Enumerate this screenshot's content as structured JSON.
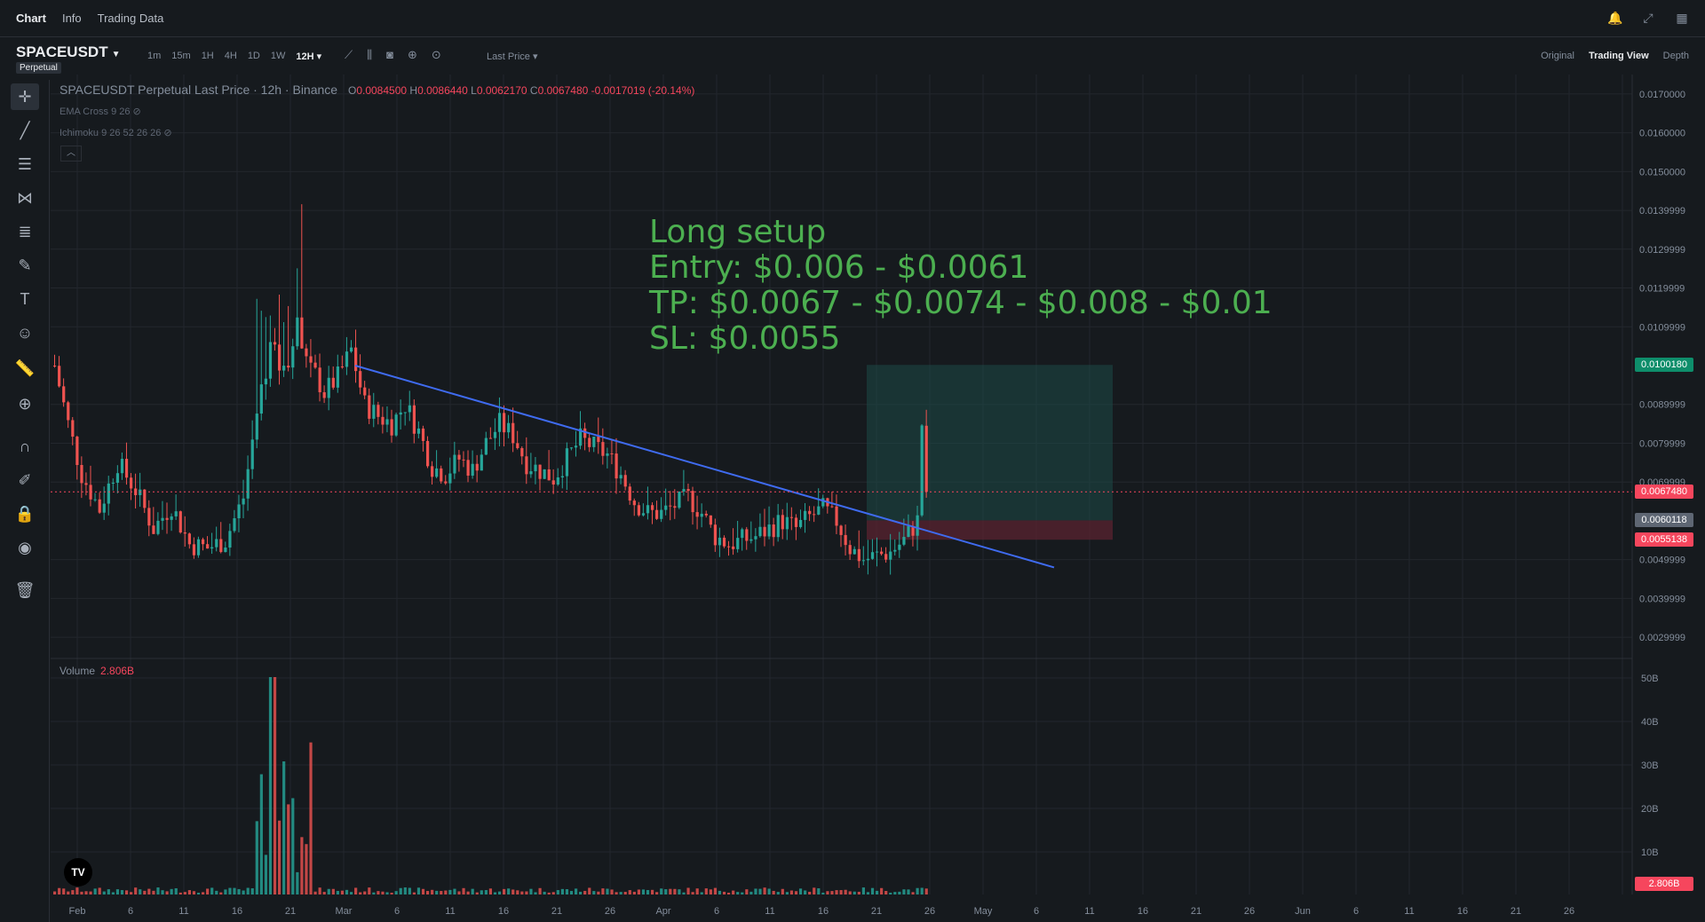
{
  "topnav": {
    "tabs": [
      {
        "label": "Chart"
      },
      {
        "label": "Info"
      },
      {
        "label": "Trading Data"
      }
    ]
  },
  "toolbar": {
    "symbol": "SPACEUSDT",
    "badge": "Perpetual",
    "intervals": [
      "1m",
      "15m",
      "1H",
      "4H",
      "1D",
      "1W",
      "12H"
    ],
    "active_interval": "12H",
    "last_price_label": "Last Price",
    "views": [
      "Original",
      "Trading View",
      "Depth"
    ],
    "active_view": "Trading View"
  },
  "legend": {
    "title": "SPACEUSDT Perpetual Last Price · 12h · Binance",
    "o_label": "O",
    "o": "0.0084500",
    "h_label": "H",
    "h": "0.0086440",
    "l_label": "L",
    "l": "0.0062170",
    "c_label": "C",
    "c": "0.0067480",
    "change": "-0.0017019 (-20.14%)",
    "indicators": [
      "EMA Cross 9 26",
      "Ichimoku 9 26 52 26 26"
    ]
  },
  "annotation": {
    "line1": "Long setup",
    "line2": "Entry: $0.006 - $0.0061",
    "line3": "TP: $0.0067 - $0.0074 - $0.008 - $0.01",
    "line4": "SL: $0.0055"
  },
  "price_tags": [
    {
      "value": "0.0100180",
      "color": "#0e8e6b"
    },
    {
      "value": "0.0067480",
      "color": "#f6465d"
    },
    {
      "value": "0.0060118",
      "color": "#5e6673"
    },
    {
      "value": "0.0055138",
      "color": "#f6465d"
    }
  ],
  "volume": {
    "label": "Volume",
    "value": "2.806B",
    "tag": "2.806B"
  },
  "colors": {
    "up": "#26a69a",
    "down": "#ef5350",
    "trendline": "#3f6bf0",
    "target_zone": "#1d4a47",
    "stop_zone": "#5a2330"
  },
  "chart_data": {
    "type": "candlestick",
    "y_ticks": [
      "0.0170000",
      "0.0160000",
      "0.0150000",
      "0.0139999",
      "0.0129999",
      "0.0119999",
      "0.0109999",
      "0.0089999",
      "0.0079999",
      "0.0069999",
      "0.0049999",
      "0.0039999",
      "0.0029999"
    ],
    "ylim": [
      0.0025,
      0.0175
    ],
    "volume_ticks": [
      "50B",
      "40B",
      "30B",
      "20B",
      "10B"
    ],
    "x_ticks": [
      "Feb",
      "6",
      "11",
      "16",
      "21",
      "Mar",
      "6",
      "11",
      "16",
      "21",
      "26",
      "Apr",
      "6",
      "11",
      "16",
      "21",
      "26",
      "May",
      "6",
      "11",
      "16",
      "21",
      "26",
      "Jun",
      "6",
      "11",
      "16",
      "21",
      "26"
    ],
    "last_price": 0.006748,
    "position": {
      "entry": 0.0060118,
      "target": 0.010018,
      "stop": 0.0055138
    },
    "trendline": {
      "from": [
        "Feb 28",
        0.01
      ],
      "to": [
        "May 6",
        0.0048
      ]
    },
    "price_path": [
      [
        0,
        0.01
      ],
      [
        3,
        0.0085
      ],
      [
        6,
        0.0072
      ],
      [
        10,
        0.0063
      ],
      [
        14,
        0.0075
      ],
      [
        18,
        0.0068
      ],
      [
        22,
        0.0058
      ],
      [
        26,
        0.0064
      ],
      [
        30,
        0.0054
      ],
      [
        34,
        0.0053
      ],
      [
        38,
        0.0055
      ],
      [
        42,
        0.0066
      ],
      [
        45,
        0.0088
      ],
      [
        48,
        0.0105
      ],
      [
        51,
        0.0098
      ],
      [
        54,
        0.011
      ],
      [
        57,
        0.01
      ],
      [
        60,
        0.0093
      ],
      [
        63,
        0.0097
      ],
      [
        66,
        0.0104
      ],
      [
        69,
        0.009
      ],
      [
        72,
        0.0087
      ],
      [
        75,
        0.0085
      ],
      [
        78,
        0.009
      ],
      [
        81,
        0.0083
      ],
      [
        84,
        0.0074
      ],
      [
        87,
        0.0072
      ],
      [
        90,
        0.0076
      ],
      [
        93,
        0.0073
      ],
      [
        96,
        0.008
      ],
      [
        99,
        0.0085
      ],
      [
        102,
        0.0082
      ],
      [
        105,
        0.0075
      ],
      [
        108,
        0.0073
      ],
      [
        111,
        0.0071
      ],
      [
        114,
        0.0076
      ],
      [
        117,
        0.0081
      ],
      [
        120,
        0.0079
      ],
      [
        123,
        0.0077
      ],
      [
        126,
        0.0072
      ],
      [
        129,
        0.0065
      ],
      [
        132,
        0.0062
      ],
      [
        135,
        0.0062
      ],
      [
        138,
        0.0064
      ],
      [
        141,
        0.0066
      ],
      [
        144,
        0.0062
      ],
      [
        147,
        0.0056
      ],
      [
        150,
        0.0054
      ],
      [
        153,
        0.0055
      ],
      [
        156,
        0.0056
      ],
      [
        159,
        0.0058
      ],
      [
        162,
        0.006
      ],
      [
        165,
        0.0058
      ],
      [
        168,
        0.0061
      ],
      [
        171,
        0.0063
      ],
      [
        174,
        0.006
      ],
      [
        177,
        0.0053
      ],
      [
        180,
        0.005
      ],
      [
        183,
        0.0051
      ],
      [
        186,
        0.0052
      ],
      [
        189,
        0.0055
      ],
      [
        192,
        0.006
      ],
      [
        193,
        0.0085
      ],
      [
        194,
        0.0067
      ]
    ]
  }
}
